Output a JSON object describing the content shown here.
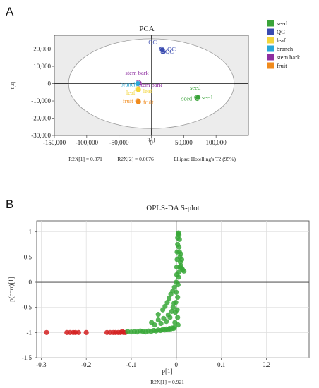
{
  "panel_a": {
    "letter": "A",
    "stats": {
      "r2x1": "R2X[1] = 0.871",
      "r2x2": "R2X[2] = 0.0676",
      "ellipse": "Ellipse: Hotelling's T2 (95%)"
    }
  },
  "panel_b": {
    "letter": "B",
    "stats": {
      "r2x1": "R2X[1] = 0.921"
    }
  },
  "legend": [
    {
      "label": "seed",
      "color": "#3aa33a"
    },
    {
      "label": "QC",
      "color": "#3a4bb0"
    },
    {
      "label": "leaf",
      "color": "#f2d53c"
    },
    {
      "label": "branch",
      "color": "#2aa8d8"
    },
    {
      "label": "stem bark",
      "color": "#8e2fa0"
    },
    {
      "label": "fruit",
      "color": "#f08a1c"
    }
  ],
  "chart_data": [
    {
      "type": "scatter",
      "title": "PCA",
      "xlabel": "t[1]",
      "ylabel": "t[2]",
      "xlim": [
        -150000,
        150000
      ],
      "ylim": [
        -30000,
        28000
      ],
      "xticks": [
        "-150,000",
        "-100,000",
        "-50,000",
        "0",
        "50,000",
        "100,000"
      ],
      "yticks": [
        "20,000",
        "10,000",
        "0",
        "-10,000",
        "-20,000",
        "-30,000"
      ],
      "grid": true,
      "ellipse": {
        "cx": 0,
        "cy": 0,
        "rx": 128000,
        "ry": 26000
      },
      "legend_position": "right",
      "groups": [
        {
          "name": "QC",
          "color": "#3a4bb0",
          "points": [
            {
              "x": 16000,
              "y": 20000,
              "label": "QC"
            },
            {
              "x": 18000,
              "y": 18500,
              "label": "QC"
            },
            {
              "x": 17000,
              "y": 19500,
              "label": "QC"
            }
          ]
        },
        {
          "name": "stem bark",
          "color": "#8e2fa0",
          "points": [
            {
              "x": -20000,
              "y": 700,
              "label": "stem bark"
            },
            {
              "x": -19000,
              "y": 300,
              "label": "stem bark"
            }
          ]
        },
        {
          "name": "branch",
          "color": "#2aa8d8",
          "points": [
            {
              "x": -21000,
              "y": 0,
              "label": "branch"
            }
          ]
        },
        {
          "name": "leaf",
          "color": "#f2d53c",
          "points": [
            {
              "x": -21000,
              "y": -3000,
              "label": "leaf"
            },
            {
              "x": -20000,
              "y": -3500,
              "label": "leaf"
            }
          ]
        },
        {
          "name": "fruit",
          "color": "#f08a1c",
          "points": [
            {
              "x": -21000,
              "y": -10000,
              "label": "fruit"
            },
            {
              "x": -20000,
              "y": -10500,
              "label": "fruit"
            }
          ]
        },
        {
          "name": "seed",
          "color": "#3aa33a",
          "points": [
            {
              "x": 70000,
              "y": -8000,
              "label": "seed"
            },
            {
              "x": 71000,
              "y": -8500,
              "label": "seed"
            },
            {
              "x": 72000,
              "y": -8000,
              "label": "seed"
            }
          ]
        }
      ]
    },
    {
      "type": "scatter",
      "title": "OPLS-DA S-plot",
      "xlabel": "p[1]",
      "ylabel": "p(corr)[1]",
      "xlim": [
        -0.31,
        0.295
      ],
      "ylim": [
        -1.5,
        1.22
      ],
      "xticks": [
        -0.3,
        -0.2,
        -0.1,
        0,
        0.1,
        0.2
      ],
      "yticks": [
        1,
        0.5,
        0,
        -0.5,
        -1,
        -1.5
      ],
      "grid": true,
      "series": [
        {
          "color": "#d42020",
          "points": [
            [
              -0.288,
              -1.0
            ],
            [
              -0.243,
              -1.0
            ],
            [
              -0.236,
              -1.0
            ],
            [
              -0.229,
              -1.0
            ],
            [
              -0.224,
              -1.0
            ],
            [
              -0.217,
              -1.0
            ],
            [
              -0.2,
              -1.0
            ],
            [
              -0.154,
              -1.0
            ],
            [
              -0.147,
              -1.0
            ],
            [
              -0.14,
              -1.0
            ],
            [
              -0.135,
              -1.0
            ],
            [
              -0.129,
              -1.0
            ],
            [
              -0.124,
              -1.0
            ],
            [
              -0.12,
              -0.98
            ],
            [
              -0.117,
              -1.0
            ],
            [
              -0.113,
              -1.0
            ]
          ]
        },
        {
          "color": "#38a838",
          "points": [
            [
              -0.108,
              -0.98
            ],
            [
              -0.1,
              -0.99
            ],
            [
              -0.093,
              -0.98
            ],
            [
              -0.087,
              -0.99
            ],
            [
              -0.08,
              -0.97
            ],
            [
              -0.074,
              -0.98
            ],
            [
              -0.068,
              -0.99
            ],
            [
              -0.062,
              -0.97
            ],
            [
              -0.056,
              -0.98
            ],
            [
              -0.05,
              -0.96
            ],
            [
              -0.045,
              -0.97
            ],
            [
              -0.04,
              -0.95
            ],
            [
              -0.035,
              -0.96
            ],
            [
              -0.03,
              -0.94
            ],
            [
              -0.026,
              -0.95
            ],
            [
              -0.022,
              -0.93
            ],
            [
              -0.018,
              -0.94
            ],
            [
              -0.015,
              -0.92
            ],
            [
              -0.012,
              -0.93
            ],
            [
              -0.009,
              -0.91
            ],
            [
              -0.006,
              -0.92
            ],
            [
              -0.004,
              -0.9
            ],
            [
              -0.055,
              -0.8
            ],
            [
              -0.048,
              -0.85
            ],
            [
              -0.04,
              -0.75
            ],
            [
              -0.034,
              -0.82
            ],
            [
              -0.028,
              -0.72
            ],
            [
              -0.022,
              -0.78
            ],
            [
              -0.018,
              -0.65
            ],
            [
              -0.014,
              -0.7
            ],
            [
              -0.01,
              -0.58
            ],
            [
              -0.007,
              -0.5
            ],
            [
              -0.005,
              -0.42
            ],
            [
              -0.04,
              -0.64
            ],
            [
              -0.03,
              -0.55
            ],
            [
              -0.025,
              -0.48
            ],
            [
              -0.02,
              -0.4
            ],
            [
              -0.016,
              -0.32
            ],
            [
              -0.012,
              -0.24
            ],
            [
              -0.008,
              -0.18
            ],
            [
              -0.004,
              -0.1
            ],
            [
              -0.003,
              -0.8
            ],
            [
              -0.002,
              -0.6
            ],
            [
              -0.001,
              -0.4
            ],
            [
              0.0,
              -0.2
            ],
            [
              0.0,
              0.0
            ],
            [
              0.001,
              0.15
            ],
            [
              0.001,
              0.3
            ],
            [
              0.002,
              0.45
            ],
            [
              0.002,
              0.6
            ],
            [
              0.003,
              0.75
            ],
            [
              0.003,
              0.88
            ],
            [
              0.004,
              0.96
            ],
            [
              0.005,
              0.98
            ],
            [
              0.006,
              0.94
            ],
            [
              0.007,
              0.85
            ],
            [
              0.006,
              0.7
            ],
            [
              0.007,
              0.6
            ],
            [
              0.008,
              0.5
            ],
            [
              0.009,
              0.4
            ],
            [
              0.01,
              0.33
            ],
            [
              0.012,
              0.28
            ],
            [
              0.014,
              0.25
            ],
            [
              0.017,
              0.22
            ],
            [
              0.012,
              0.45
            ],
            [
              0.01,
              0.56
            ],
            [
              0.008,
              0.3
            ],
            [
              0.006,
              0.2
            ],
            [
              0.005,
              0.1
            ],
            [
              0.004,
              -0.05
            ],
            [
              0.003,
              -0.3
            ],
            [
              0.002,
              -0.55
            ],
            [
              0.003,
              -0.7
            ],
            [
              0.004,
              -0.85
            ]
          ]
        }
      ]
    }
  ]
}
